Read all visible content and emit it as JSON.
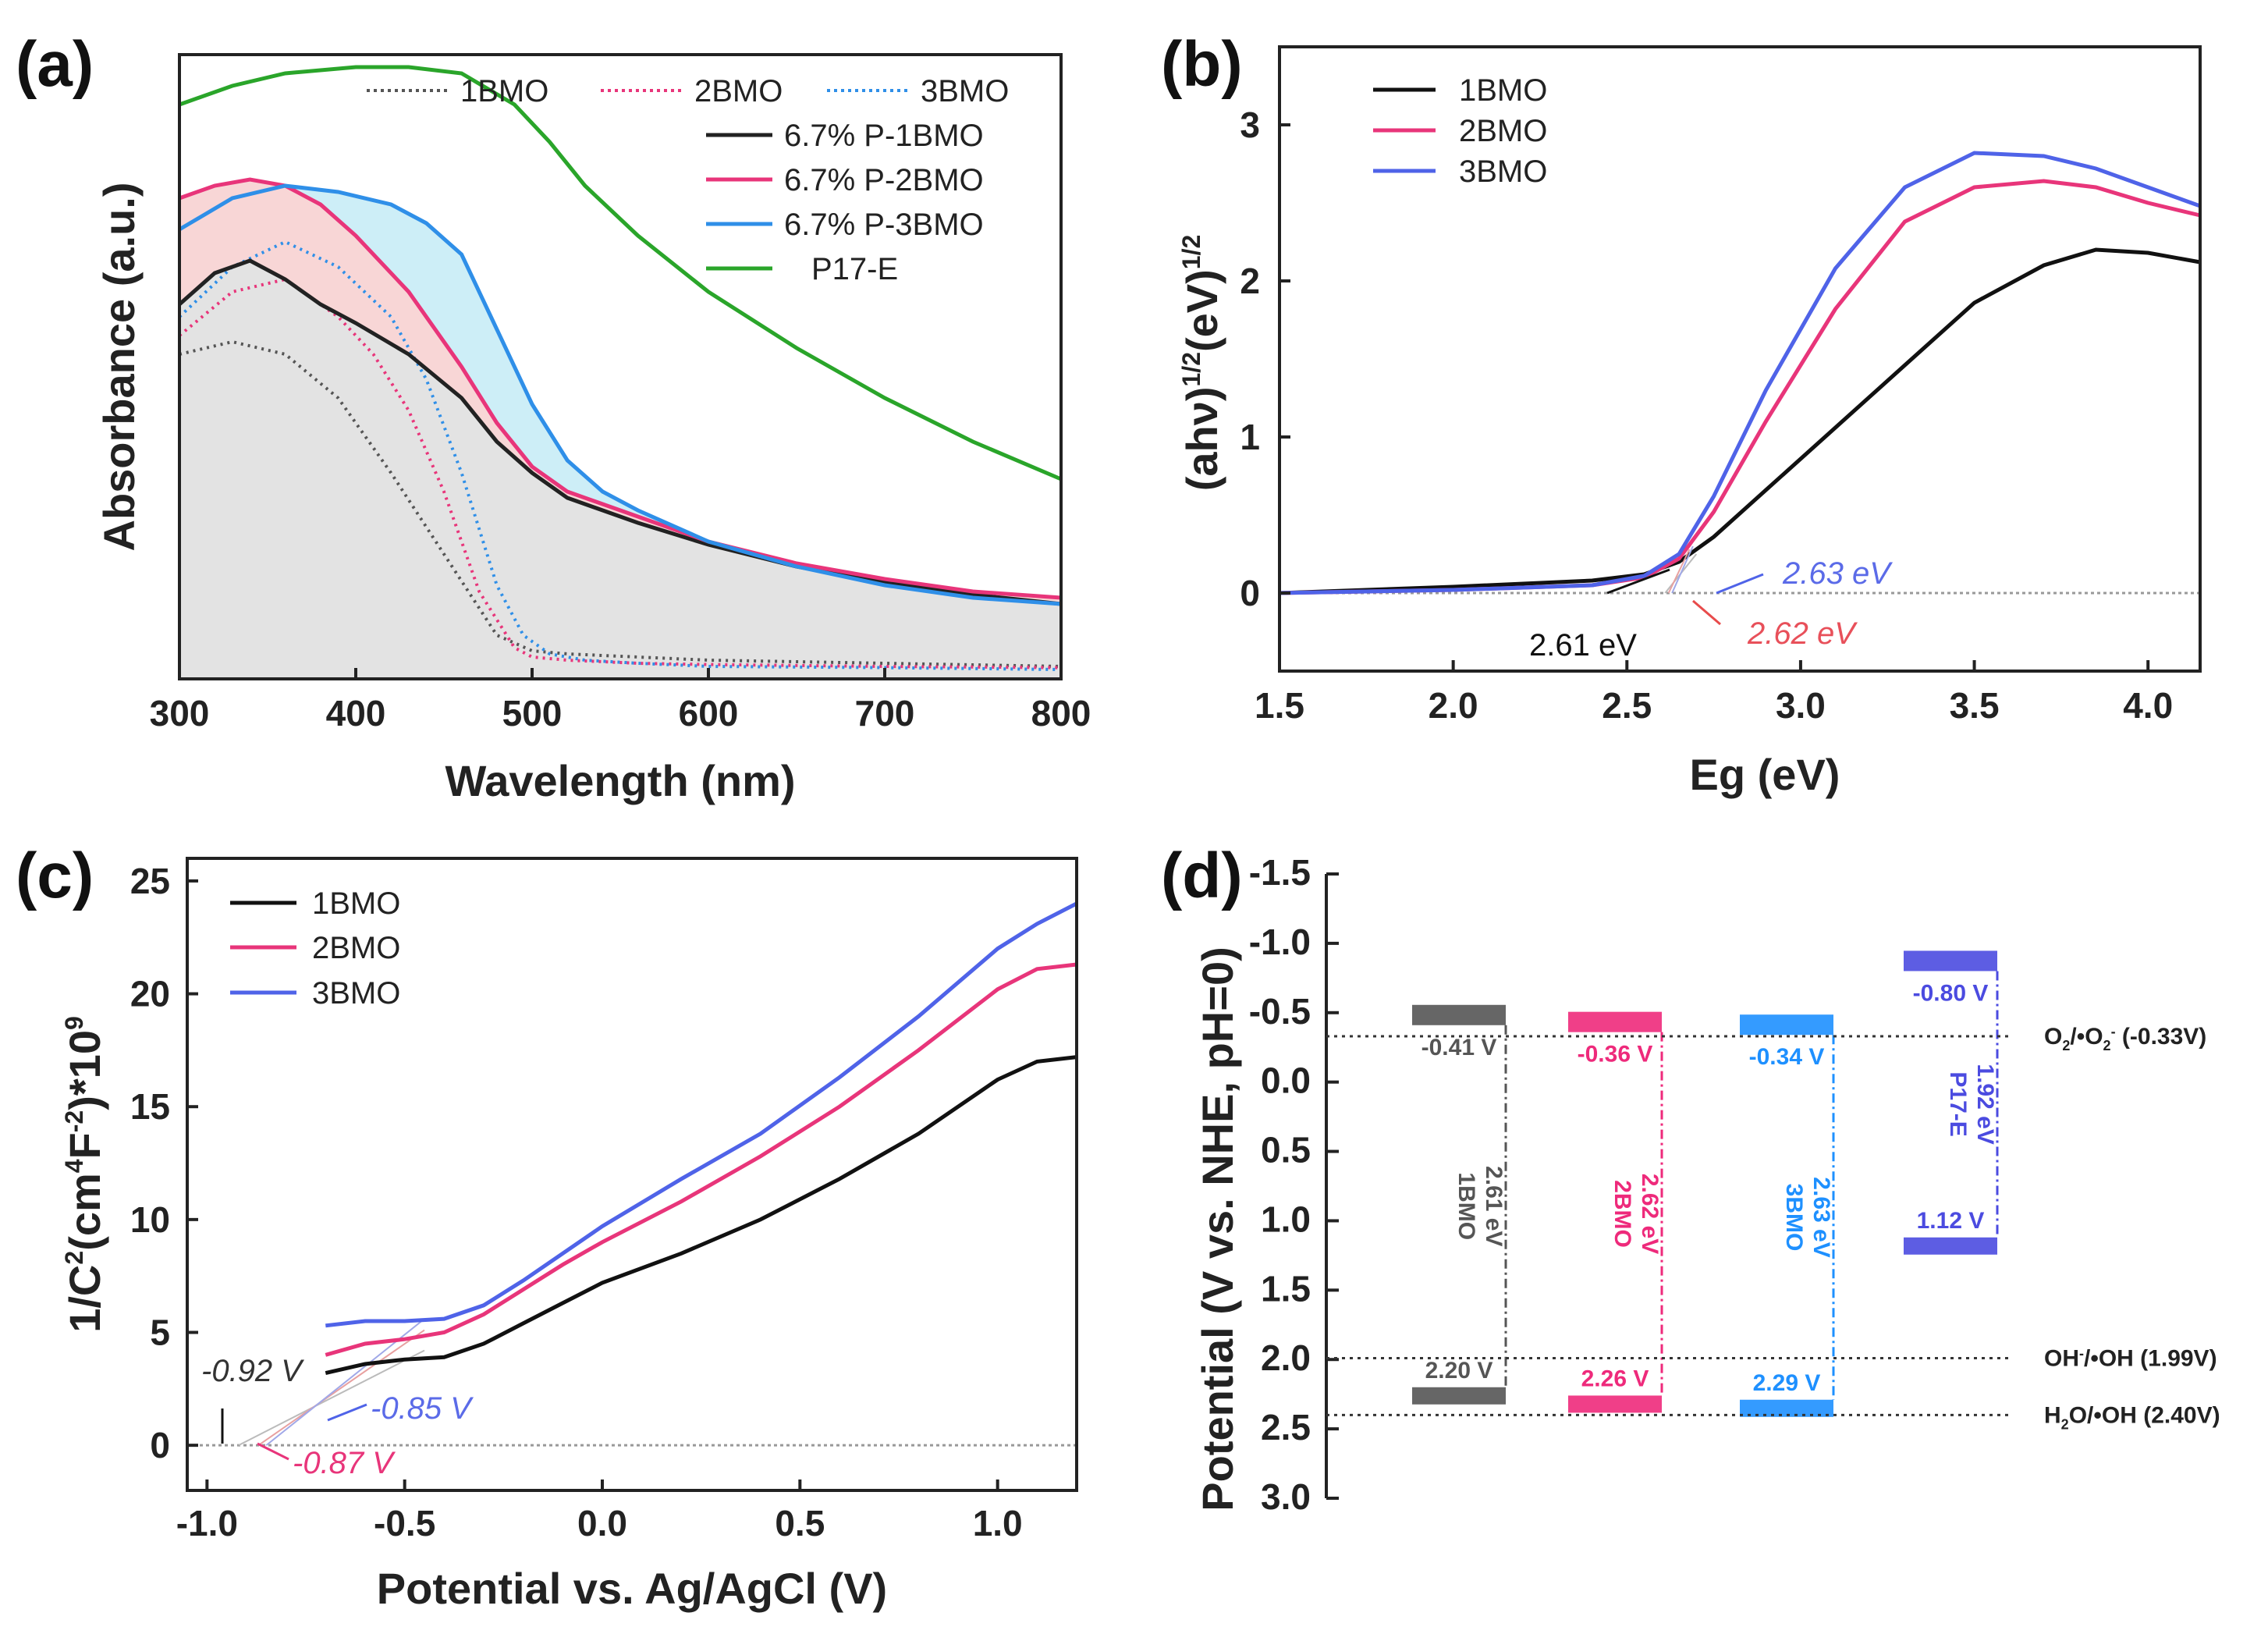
{
  "chart_data": [
    {
      "type": "line",
      "panel": "(a)",
      "xlabel": "Wavelength (nm)",
      "ylabel": "Absorbance (a.u.)",
      "xlim": [
        300,
        800
      ],
      "ylim": [
        0,
        1
      ],
      "xticks": [
        "300",
        "400",
        "500",
        "600",
        "700",
        "800"
      ],
      "shaded": true,
      "series": [
        {
          "name": "1BMO",
          "color": "#555555",
          "style": "dotted",
          "x": [
            300,
            330,
            360,
            390,
            420,
            450,
            480,
            500,
            520,
            560,
            600,
            700,
            800
          ],
          "y": [
            0.52,
            0.54,
            0.52,
            0.45,
            0.33,
            0.2,
            0.07,
            0.045,
            0.04,
            0.035,
            0.03,
            0.025,
            0.02
          ]
        },
        {
          "name": "2BMO",
          "color": "#e8357a",
          "style": "dotted",
          "x": [
            300,
            330,
            360,
            390,
            410,
            430,
            450,
            470,
            490,
            500,
            520,
            560,
            600,
            700,
            800
          ],
          "y": [
            0.55,
            0.62,
            0.64,
            0.58,
            0.52,
            0.43,
            0.3,
            0.14,
            0.05,
            0.035,
            0.03,
            0.025,
            0.023,
            0.02,
            0.018
          ]
        },
        {
          "name": "3BMO",
          "color": "#2f8fe8",
          "style": "dotted",
          "x": [
            300,
            330,
            360,
            390,
            420,
            440,
            460,
            480,
            495,
            510,
            530,
            560,
            600,
            700,
            800
          ],
          "y": [
            0.58,
            0.66,
            0.7,
            0.66,
            0.58,
            0.48,
            0.33,
            0.15,
            0.07,
            0.04,
            0.03,
            0.025,
            0.02,
            0.018,
            0.015
          ]
        },
        {
          "name": "6.7% P-1BMO",
          "color": "#222222",
          "style": "solid",
          "x": [
            300,
            320,
            340,
            360,
            380,
            400,
            430,
            460,
            480,
            500,
            520,
            560,
            600,
            650,
            700,
            750,
            800
          ],
          "y": [
            0.6,
            0.65,
            0.67,
            0.64,
            0.6,
            0.57,
            0.52,
            0.45,
            0.38,
            0.33,
            0.29,
            0.25,
            0.215,
            0.18,
            0.155,
            0.135,
            0.12
          ]
        },
        {
          "name": "6.7% P-2BMO",
          "color": "#e8357a",
          "style": "solid",
          "x": [
            300,
            320,
            340,
            360,
            380,
            400,
            430,
            460,
            480,
            500,
            520,
            560,
            600,
            650,
            700,
            750,
            800
          ],
          "y": [
            0.77,
            0.79,
            0.8,
            0.79,
            0.76,
            0.71,
            0.62,
            0.5,
            0.41,
            0.34,
            0.3,
            0.26,
            0.22,
            0.185,
            0.16,
            0.14,
            0.13
          ]
        },
        {
          "name": "6.7% P-3BMO",
          "color": "#2f8fe8",
          "style": "solid",
          "x": [
            300,
            330,
            360,
            390,
            420,
            440,
            460,
            480,
            500,
            520,
            540,
            560,
            600,
            650,
            700,
            750,
            800
          ],
          "y": [
            0.72,
            0.77,
            0.79,
            0.78,
            0.76,
            0.73,
            0.68,
            0.56,
            0.44,
            0.35,
            0.3,
            0.27,
            0.22,
            0.18,
            0.15,
            0.13,
            0.12
          ]
        },
        {
          "name": "P17-E",
          "color": "#2aa52a",
          "style": "solid",
          "x": [
            300,
            330,
            360,
            400,
            430,
            460,
            490,
            510,
            530,
            560,
            600,
            650,
            700,
            750,
            800
          ],
          "y": [
            0.92,
            0.95,
            0.97,
            0.98,
            0.98,
            0.97,
            0.92,
            0.86,
            0.79,
            0.71,
            0.62,
            0.53,
            0.45,
            0.38,
            0.32
          ]
        }
      ]
    },
    {
      "type": "line",
      "panel": "(b)",
      "xlabel": "Eg (eV)",
      "ylabel": "(ahν)^1/2(eV)^1/2",
      "ylabel_main": "(ahν)",
      "ylabel_sup1": "1/2",
      "ylabel_mid": "(eV)",
      "ylabel_sup2": "1/2",
      "xlim": [
        1.5,
        4.15
      ],
      "ylim": [
        -0.5,
        3.5
      ],
      "xticks": [
        "1.5",
        "2.0",
        "2.5",
        "3.0",
        "3.5",
        "4.0"
      ],
      "yticks": [
        "0",
        "1",
        "2",
        "3"
      ],
      "series": [
        {
          "name": "1BMO",
          "color": "#111111",
          "x": [
            1.5,
            2.0,
            2.4,
            2.55,
            2.65,
            2.75,
            2.9,
            3.1,
            3.3,
            3.5,
            3.7,
            3.85,
            4.0,
            4.15
          ],
          "y": [
            0.0,
            0.04,
            0.08,
            0.12,
            0.2,
            0.36,
            0.66,
            1.06,
            1.46,
            1.86,
            2.1,
            2.2,
            2.18,
            2.12
          ]
        },
        {
          "name": "2BMO",
          "color": "#e8357a",
          "x": [
            1.5,
            2.0,
            2.4,
            2.55,
            2.65,
            2.75,
            2.9,
            3.1,
            3.3,
            3.5,
            3.7,
            3.85,
            4.0,
            4.15
          ],
          "y": [
            0.0,
            0.02,
            0.05,
            0.1,
            0.22,
            0.52,
            1.1,
            1.82,
            2.38,
            2.6,
            2.64,
            2.6,
            2.5,
            2.42
          ]
        },
        {
          "name": "3BMO",
          "color": "#4f63e8",
          "x": [
            1.5,
            2.0,
            2.4,
            2.55,
            2.65,
            2.75,
            2.9,
            3.1,
            3.3,
            3.5,
            3.7,
            3.85,
            4.0,
            4.15
          ],
          "y": [
            0.0,
            0.02,
            0.05,
            0.11,
            0.25,
            0.62,
            1.3,
            2.08,
            2.6,
            2.82,
            2.8,
            2.72,
            2.6,
            2.48
          ]
        }
      ],
      "annotations": [
        "2.63 eV",
        "2.61 eV",
        "2.62 eV"
      ]
    },
    {
      "type": "line",
      "panel": "(c)",
      "xlabel": "Potential vs. Ag/AgCl (V)",
      "ylabel": "1/C²(cm⁴F⁻²)*10⁹",
      "ylabel_a": "1/C",
      "ylabel_sup_a": "2",
      "ylabel_b": "(cm",
      "ylabel_sup_b": "4",
      "ylabel_c": "F",
      "ylabel_sup_c": "-2",
      "ylabel_d": ")*10",
      "ylabel_sup_d": "9",
      "xlim": [
        -1.05,
        1.2
      ],
      "ylim": [
        -2,
        26
      ],
      "xticks": [
        "-1.0",
        "-0.5",
        "0.0",
        "0.5",
        "1.0"
      ],
      "yticks": [
        "0",
        "5",
        "10",
        "15",
        "20",
        "25"
      ],
      "series": [
        {
          "name": "1BMO",
          "color": "#111111",
          "x": [
            -0.7,
            -0.6,
            -0.5,
            -0.4,
            -0.3,
            -0.2,
            -0.1,
            0.0,
            0.2,
            0.4,
            0.6,
            0.8,
            1.0,
            1.1,
            1.2
          ],
          "y": [
            3.2,
            3.6,
            3.8,
            3.9,
            4.5,
            5.4,
            6.3,
            7.2,
            8.5,
            10.0,
            11.8,
            13.8,
            16.2,
            17.0,
            17.2
          ]
        },
        {
          "name": "2BMO",
          "color": "#e8357a",
          "x": [
            -0.7,
            -0.6,
            -0.5,
            -0.4,
            -0.3,
            -0.2,
            -0.1,
            0.0,
            0.2,
            0.4,
            0.6,
            0.8,
            1.0,
            1.1,
            1.2
          ],
          "y": [
            4.0,
            4.5,
            4.7,
            5.0,
            5.8,
            6.9,
            8.0,
            9.0,
            10.8,
            12.8,
            15.0,
            17.5,
            20.2,
            21.1,
            21.3
          ]
        },
        {
          "name": "3BMO",
          "color": "#4f63e8",
          "x": [
            -0.7,
            -0.6,
            -0.5,
            -0.4,
            -0.3,
            -0.2,
            -0.1,
            0.0,
            0.2,
            0.4,
            0.6,
            0.8,
            1.0,
            1.1,
            1.2
          ],
          "y": [
            5.3,
            5.5,
            5.5,
            5.6,
            6.2,
            7.3,
            8.5,
            9.7,
            11.8,
            13.8,
            16.3,
            19.0,
            22.0,
            23.1,
            24.0
          ]
        }
      ],
      "annotations": [
        "-0.92 V",
        "-0.85 V",
        "-0.87 V"
      ]
    },
    {
      "type": "diagram",
      "panel": "(d)",
      "ylabel": "Potential (V vs. NHE, pH=0)",
      "ylim": [
        -1.5,
        3.0
      ],
      "yticks": [
        "-1.5",
        "-1.0",
        "-0.5",
        "0.0",
        "0.5",
        "1.0",
        "1.5",
        "2.0",
        "2.5",
        "3.0"
      ],
      "bands": [
        {
          "name": "1BMO",
          "gap": "2.61 eV",
          "cb": -0.41,
          "vb": 2.2,
          "cb_label": "-0.41 V",
          "vb_label": "2.20 V",
          "color": "#555555"
        },
        {
          "name": "2BMO",
          "gap": "2.62 eV",
          "cb": -0.36,
          "vb": 2.26,
          "cb_label": "-0.36 V",
          "vb_label": "2.26 V",
          "color": "#ee2a7b"
        },
        {
          "name": "3BMO",
          "gap": "2.63 eV",
          "cb": -0.34,
          "vb": 2.29,
          "cb_label": "-0.34 V",
          "vb_label": "2.29 V",
          "color": "#1e90ff"
        },
        {
          "name": "P17-E",
          "gap": "1.92 eV",
          "cb": -0.8,
          "vb": 1.12,
          "cb_label": "-0.80 V",
          "vb_label": "1.12 V",
          "color": "#4b4be0"
        }
      ],
      "reference_levels": [
        {
          "name": "O₂/•O₂⁻ (-0.33V)",
          "label_a": "O",
          "label_sub": "2",
          "label_b": "/•O",
          "label_sub2": "2",
          "label_sup": "-",
          "label_value": "(-0.33V)",
          "value": -0.33
        },
        {
          "name": "OH⁻/•OH (1.99V)",
          "label_a": "OH",
          "label_sup": "-",
          "label_b": "/•OH",
          "label_value": "(1.99V)",
          "value": 1.99
        },
        {
          "name": "H₂O/•OH (2.40V)",
          "label_a": "H",
          "label_sub": "2",
          "label_b": "O/•OH",
          "label_value": "(2.40V)",
          "value": 2.4
        }
      ]
    }
  ],
  "panels": {
    "a": "(a)",
    "b": "(b)",
    "c": "(c)",
    "d": "(d)"
  }
}
